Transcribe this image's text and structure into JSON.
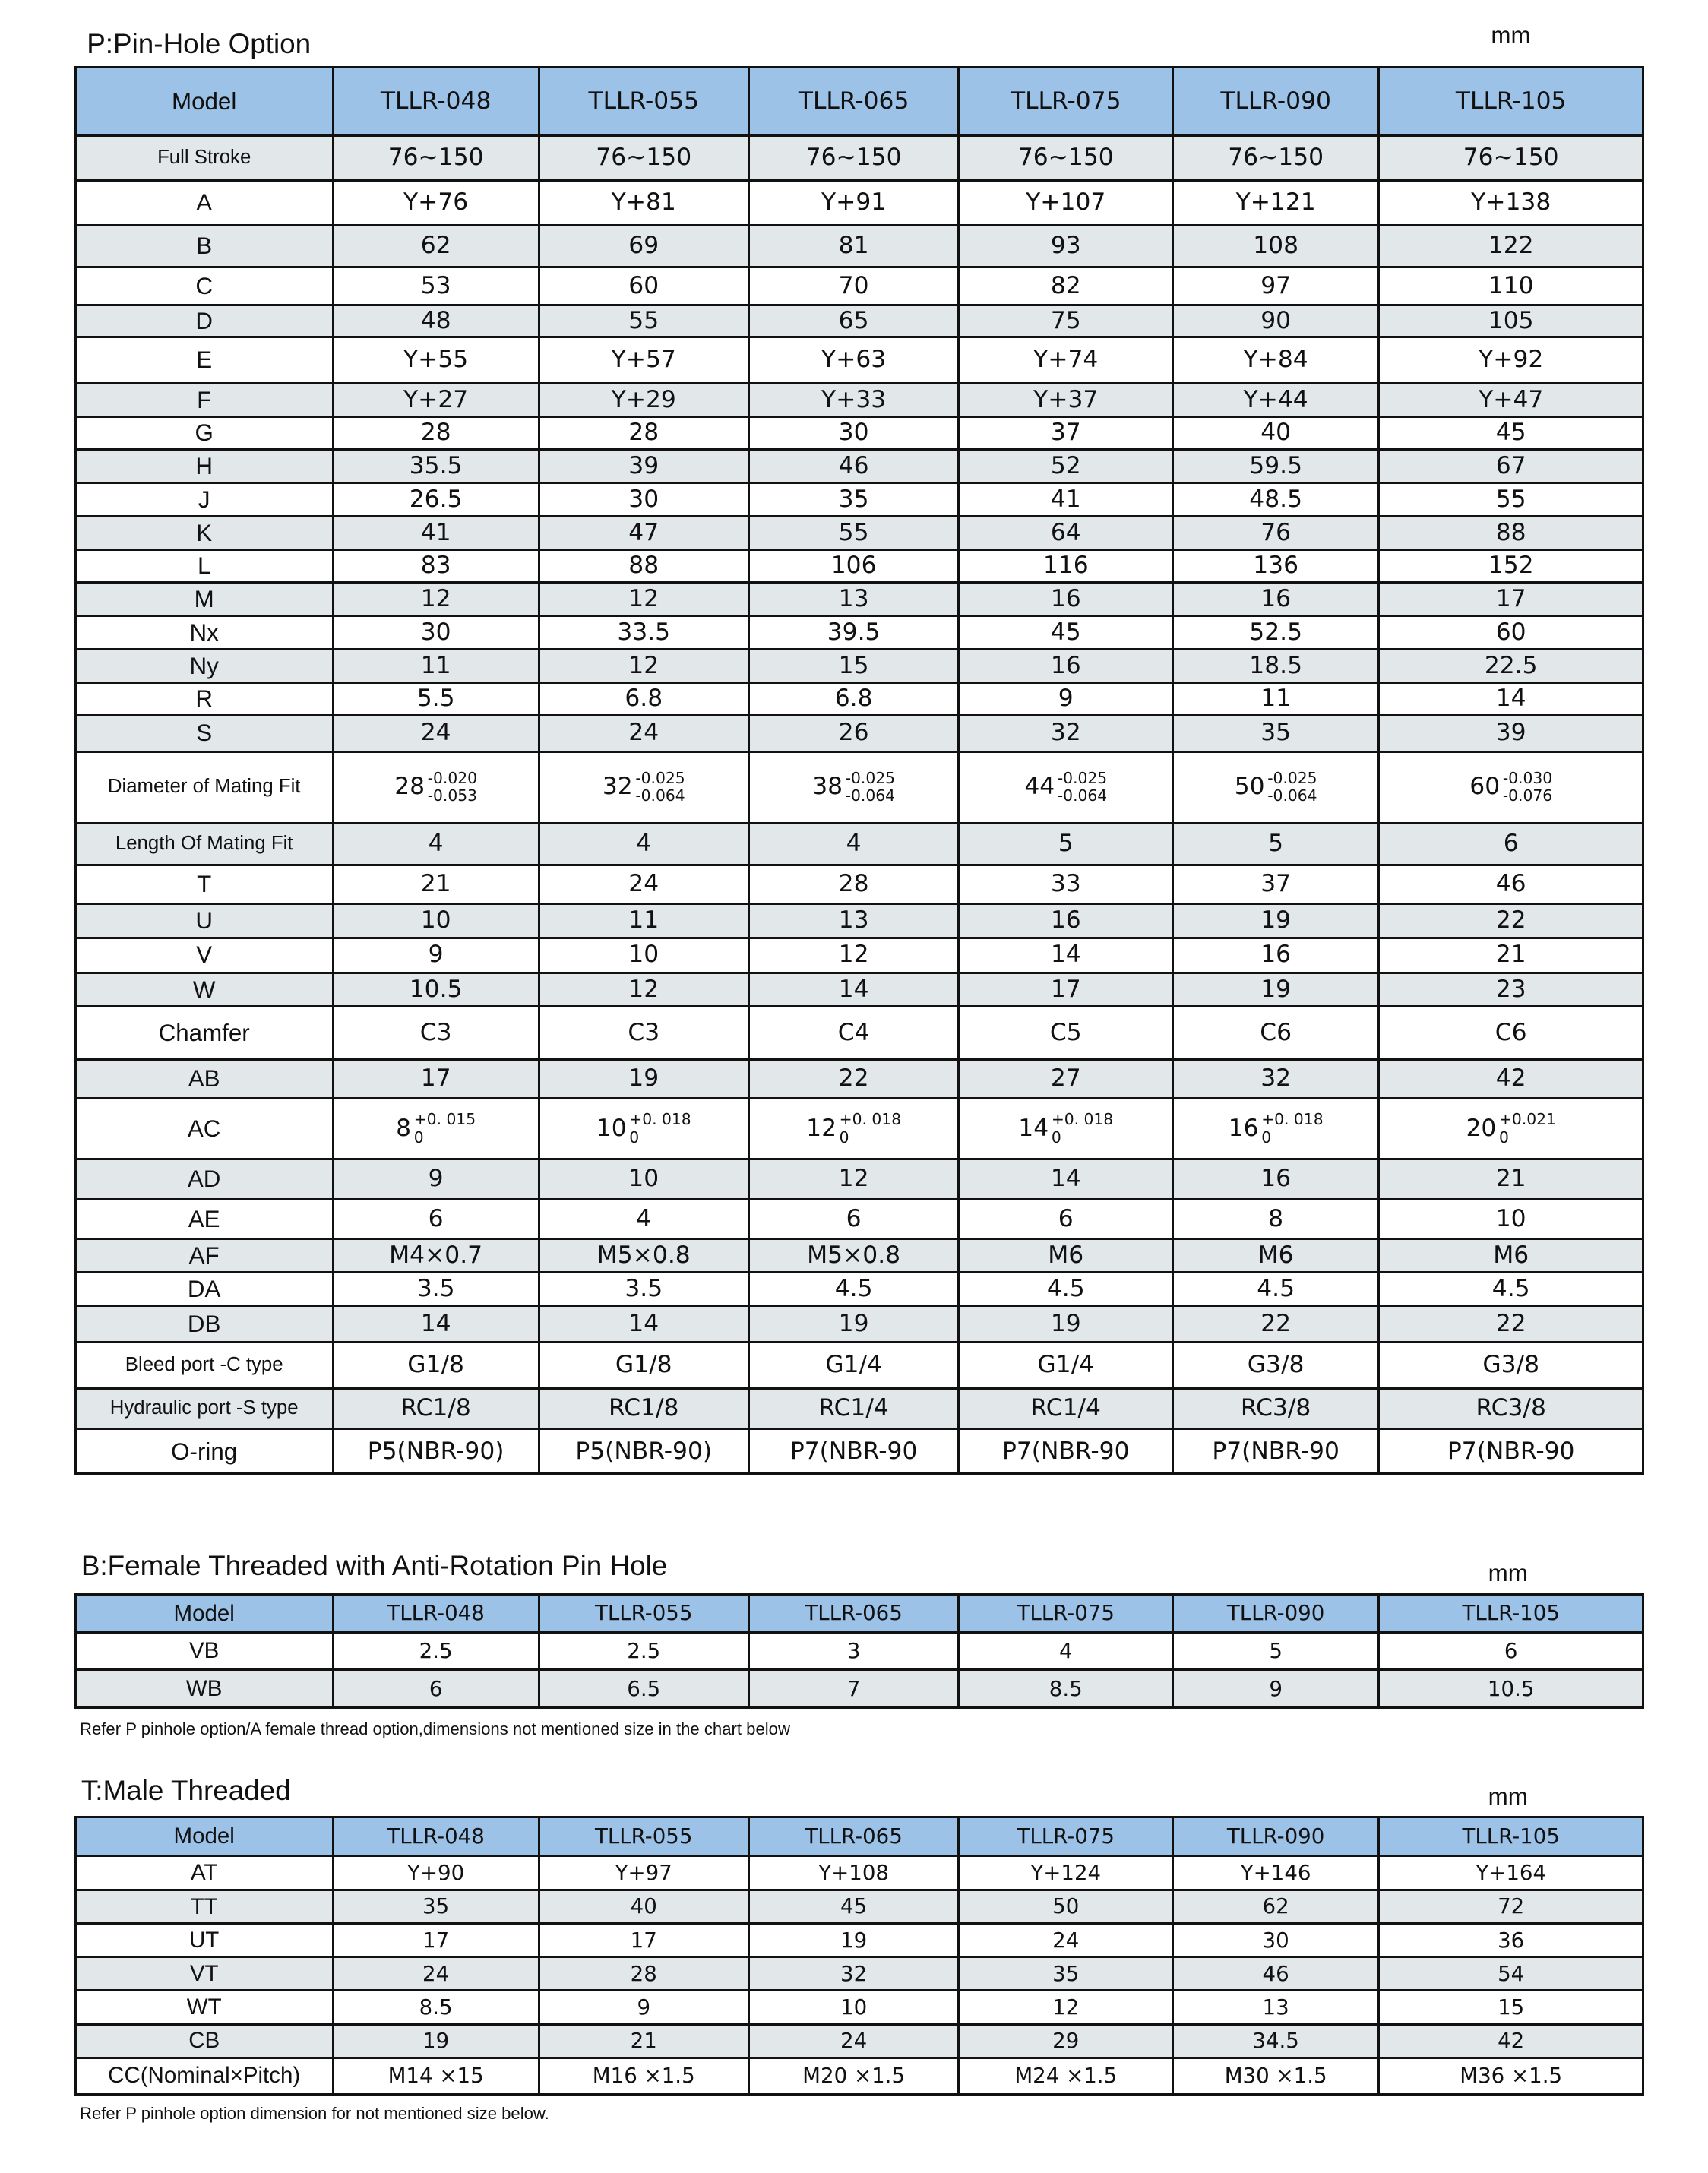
{
  "pin_hole": {
    "title": "P:Pin-Hole Option",
    "unit": "mm",
    "header": [
      "Model",
      "TLLR-048",
      "TLLR-055",
      "TLLR-065",
      "TLLR-075",
      "TLLR-090",
      "TLLR-105"
    ],
    "rows": [
      {
        "label": "Full Stroke",
        "values": [
          "76~150",
          "76~150",
          "76~150",
          "76~150",
          "76~150",
          "76~150"
        ]
      },
      {
        "label": "A",
        "values": [
          "Y+76",
          "Y+81",
          "Y+91",
          "Y+107",
          "Y+121",
          "Y+138"
        ]
      },
      {
        "label": "B",
        "values": [
          "62",
          "69",
          "81",
          "93",
          "108",
          "122"
        ]
      },
      {
        "label": "C",
        "values": [
          "53",
          "60",
          "70",
          "82",
          "97",
          "110"
        ]
      },
      {
        "label": "D",
        "values": [
          "48",
          "55",
          "65",
          "75",
          "90",
          "105"
        ]
      },
      {
        "label": "E",
        "values": [
          "Y+55",
          "Y+57",
          "Y+63",
          "Y+74",
          "Y+84",
          "Y+92"
        ]
      },
      {
        "label": "F",
        "values": [
          "Y+27",
          "Y+29",
          "Y+33",
          "Y+37",
          "Y+44",
          "Y+47"
        ]
      },
      {
        "label": "G",
        "values": [
          "28",
          "28",
          "30",
          "37",
          "40",
          "45"
        ]
      },
      {
        "label": "H",
        "values": [
          "35.5",
          "39",
          "46",
          "52",
          "59.5",
          "67"
        ]
      },
      {
        "label": "J",
        "values": [
          "26.5",
          "30",
          "35",
          "41",
          "48.5",
          "55"
        ]
      },
      {
        "label": "K",
        "values": [
          "41",
          "47",
          "55",
          "64",
          "76",
          "88"
        ]
      },
      {
        "label": "L",
        "values": [
          "83",
          "88",
          "106",
          "116",
          "136",
          "152"
        ]
      },
      {
        "label": "M",
        "values": [
          "12",
          "12",
          "13",
          "16",
          "16",
          "17"
        ]
      },
      {
        "label": "Nx",
        "values": [
          "30",
          "33.5",
          "39.5",
          "45",
          "52.5",
          "60"
        ]
      },
      {
        "label": "Ny",
        "values": [
          "11",
          "12",
          "15",
          "16",
          "18.5",
          "22.5"
        ]
      },
      {
        "label": "R",
        "values": [
          "5.5",
          "6.8",
          "6.8",
          "9",
          "11",
          "14"
        ]
      },
      {
        "label": "S",
        "values": [
          "24",
          "24",
          "26",
          "32",
          "35",
          "39"
        ]
      },
      {
        "label": "Diameter of Mating Fit",
        "values": [
          {
            "base": "28",
            "upper": "-0.020",
            "lower": "-0.053"
          },
          {
            "base": "32",
            "upper": "-0.025",
            "lower": "-0.064"
          },
          {
            "base": "38",
            "upper": "-0.025",
            "lower": "-0.064"
          },
          {
            "base": "44",
            "upper": "-0.025",
            "lower": "-0.064"
          },
          {
            "base": "50",
            "upper": "-0.025",
            "lower": "-0.064"
          },
          {
            "base": "60",
            "upper": "-0.030",
            "lower": "-0.076"
          }
        ]
      },
      {
        "label": "Length Of Mating Fit",
        "values": [
          "4",
          "4",
          "4",
          "5",
          "5",
          "6"
        ]
      },
      {
        "label": "T",
        "values": [
          "21",
          "24",
          "28",
          "33",
          "37",
          "46"
        ]
      },
      {
        "label": "U",
        "values": [
          "10",
          "11",
          "13",
          "16",
          "19",
          "22"
        ]
      },
      {
        "label": "V",
        "values": [
          "9",
          "10",
          "12",
          "14",
          "16",
          "21"
        ]
      },
      {
        "label": "W",
        "values": [
          "10.5",
          "12",
          "14",
          "17",
          "19",
          "23"
        ]
      },
      {
        "label": "Chamfer",
        "values": [
          "C3",
          "C3",
          "C4",
          "C5",
          "C6",
          "C6"
        ]
      },
      {
        "label": "AB",
        "values": [
          "17",
          "19",
          "22",
          "27",
          "32",
          "42"
        ]
      },
      {
        "label": "AC",
        "values": [
          {
            "base": "8",
            "upper": "+0. 015",
            "lower": "0"
          },
          {
            "base": "10",
            "upper": "+0. 018",
            "lower": "0"
          },
          {
            "base": "12",
            "upper": "+0. 018",
            "lower": "0"
          },
          {
            "base": "14",
            "upper": "+0. 018",
            "lower": "0"
          },
          {
            "base": "16",
            "upper": "+0. 018",
            "lower": "0"
          },
          {
            "base": "20",
            "upper": "+0.021",
            "lower": "0"
          }
        ]
      },
      {
        "label": "AD",
        "values": [
          "9",
          "10",
          "12",
          "14",
          "16",
          "21"
        ]
      },
      {
        "label": "AE",
        "values": [
          "6",
          "4",
          "6",
          "6",
          "8",
          "10"
        ]
      },
      {
        "label": "AF",
        "values": [
          "M4×0.7",
          "M5×0.8",
          "M5×0.8",
          "M6",
          "M6",
          "M6"
        ]
      },
      {
        "label": "DA",
        "values": [
          "3.5",
          "3.5",
          "4.5",
          "4.5",
          "4.5",
          "4.5"
        ]
      },
      {
        "label": "DB",
        "values": [
          "14",
          "14",
          "19",
          "19",
          "22",
          "22"
        ]
      },
      {
        "label": "Bleed port -C type",
        "values": [
          "G1/8",
          "G1/8",
          "G1/4",
          "G1/4",
          "G3/8",
          "G3/8"
        ]
      },
      {
        "label": "Hydraulic port -S type",
        "values": [
          "RC1/8",
          "RC1/8",
          "RC1/4",
          "RC1/4",
          "RC3/8",
          "RC3/8"
        ]
      },
      {
        "label": "O-ring",
        "values": [
          "P5(NBR-90)",
          "P5(NBR-90)",
          "P7(NBR-90",
          "P7(NBR-90",
          "P7(NBR-90",
          "P7(NBR-90"
        ]
      }
    ]
  },
  "female_threaded": {
    "title": "B:Female Threaded with Anti-Rotation Pin Hole",
    "unit": "mm",
    "header": [
      "Model",
      "TLLR-048",
      "TLLR-055",
      "TLLR-065",
      "TLLR-075",
      "TLLR-090",
      "TLLR-105"
    ],
    "rows": [
      {
        "label": "VB",
        "values": [
          "2.5",
          "2.5",
          "3",
          "4",
          "5",
          "6"
        ]
      },
      {
        "label": "WB",
        "values": [
          "6",
          "6.5",
          "7",
          "8.5",
          "9",
          "10.5"
        ]
      }
    ],
    "note": "Refer P pinhole option/A female thread option,dimensions not mentioned size in the chart below"
  },
  "male_threaded": {
    "title": "T:Male Threaded",
    "unit": "mm",
    "header": [
      "Model",
      "TLLR-048",
      "TLLR-055",
      "TLLR-065",
      "TLLR-075",
      "TLLR-090",
      "TLLR-105"
    ],
    "rows": [
      {
        "label": "AT",
        "values": [
          "Y+90",
          "Y+97",
          "Y+108",
          "Y+124",
          "Y+146",
          "Y+164"
        ]
      },
      {
        "label": "TT",
        "values": [
          "35",
          "40",
          "45",
          "50",
          "62",
          "72"
        ]
      },
      {
        "label": "UT",
        "values": [
          "17",
          "17",
          "19",
          "24",
          "30",
          "36"
        ]
      },
      {
        "label": "VT",
        "values": [
          "24",
          "28",
          "32",
          "35",
          "46",
          "54"
        ]
      },
      {
        "label": "WT",
        "values": [
          "8.5",
          "9",
          "10",
          "12",
          "13",
          "15"
        ]
      },
      {
        "label": "CB",
        "values": [
          "19",
          "21",
          "24",
          "29",
          "34.5",
          "42"
        ]
      },
      {
        "label": "CC(Nominal×Pitch)",
        "values": [
          "M14 ×15",
          "M16 ×1.5",
          "M20 ×1.5",
          "M24 ×1.5",
          "M30 ×1.5",
          "M36 ×1.5"
        ]
      }
    ],
    "note": "Refer P pinhole option dimension for not mentioned size below."
  },
  "colors": {
    "header_fill": "#9cc2e8",
    "alt_row_fill": "#e2e7ea",
    "border": "#111111"
  }
}
